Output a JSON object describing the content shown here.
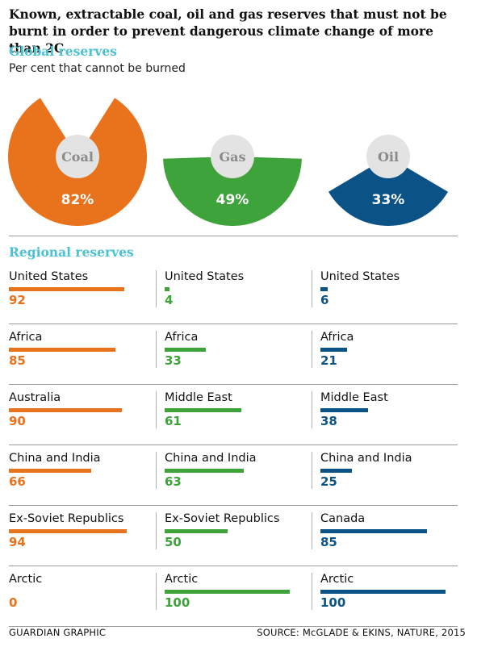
{
  "title": "Known, extractable coal, oil and gas reserves that must not be burnt in order  to prevent dangerous climate change of more than 2C",
  "global_title": "Global reserves",
  "subtitle": "Per cent that cannot be burned",
  "regional_title": "Regional reserves",
  "footer": {
    "left": "GUARDIAN GRAPHIC",
    "right": "SOURCE: McGLADE & EKINS, NATURE, 2015"
  },
  "colors": {
    "coal": "#e8731c",
    "gas": "#3da33a",
    "oil": "#0b5386",
    "hole": "#e3e3e3",
    "hole_label": "#8a8a8a",
    "accent": "#4ac2d6"
  },
  "chart_data": [
    {
      "type": "pie",
      "title": "Global reserves",
      "subtitle": "Per cent that cannot be burned",
      "slices": [
        {
          "label": "Coal",
          "value": 82,
          "value_label": "82%",
          "color": "#e8731c"
        },
        {
          "label": "Gas",
          "value": 49,
          "value_label": "49%",
          "color": "#3da33a"
        },
        {
          "label": "Oil",
          "value": 33,
          "value_label": "33%",
          "color": "#0b5386"
        }
      ]
    },
    {
      "type": "bar",
      "title": "Regional reserves",
      "xlim": [
        0,
        100
      ],
      "columns": [
        {
          "name": "Coal",
          "color": "#e8731c",
          "items": [
            {
              "label": "United States",
              "value": 92
            },
            {
              "label": "Africa",
              "value": 85
            },
            {
              "label": "Australia",
              "value": 90
            },
            {
              "label": "China and India",
              "value": 66
            },
            {
              "label": "Ex-Soviet Republics",
              "value": 94
            },
            {
              "label": "Arctic",
              "value": 0
            }
          ]
        },
        {
          "name": "Gas",
          "color": "#3da33a",
          "items": [
            {
              "label": "United States",
              "value": 4
            },
            {
              "label": "Africa",
              "value": 33
            },
            {
              "label": "Middle East",
              "value": 61
            },
            {
              "label": "China and India",
              "value": 63
            },
            {
              "label": "Ex-Soviet Republics",
              "value": 50
            },
            {
              "label": "Arctic",
              "value": 100
            }
          ]
        },
        {
          "name": "Oil",
          "color": "#0b5386",
          "items": [
            {
              "label": "United States",
              "value": 6
            },
            {
              "label": "Africa",
              "value": 21
            },
            {
              "label": "Middle East",
              "value": 38
            },
            {
              "label": "China and India",
              "value": 25
            },
            {
              "label": "Canada",
              "value": 85
            },
            {
              "label": "Arctic",
              "value": 100
            }
          ]
        }
      ]
    }
  ]
}
